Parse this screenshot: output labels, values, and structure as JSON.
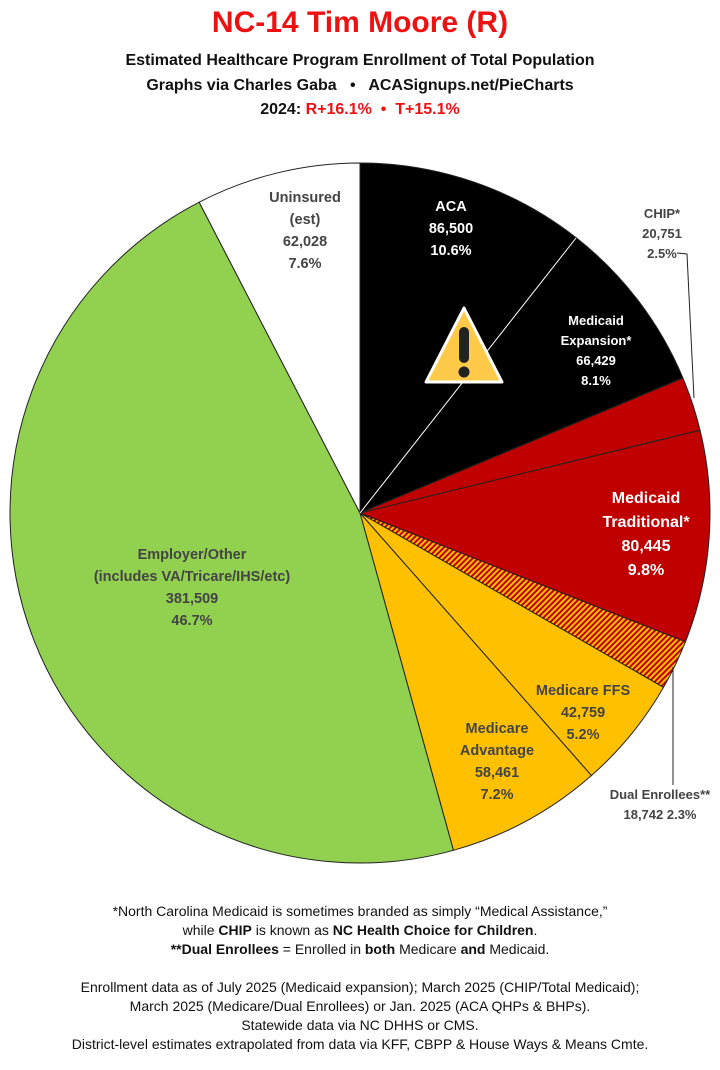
{
  "header": {
    "title": "NC-14 Tim Moore (R)",
    "subtitle": "Estimated Healthcare Program Enrollment of Total Population",
    "credit": "Graphs via Charles Gaba   •   ACASignups.net/PieCharts",
    "margin_prefix": "2024: ",
    "margin_values": "R+16.1%  •  T+15.1%"
  },
  "chart_data": {
    "type": "pie",
    "start": "top, clockwise",
    "slices": [
      {
        "label": "ACA",
        "value": 86500,
        "percent": 10.6,
        "value_text": "86,500",
        "percent_text": "10.6%",
        "color": "#000000"
      },
      {
        "label": "Medicaid Expansion*",
        "value": 66429,
        "percent": 8.1,
        "value_text": "66,429",
        "percent_text": "8.1%",
        "color": "#000000"
      },
      {
        "label": "CHIP*",
        "value": 20751,
        "percent": 2.5,
        "value_text": "20,751",
        "percent_text": "2.5%",
        "color": "#c00000"
      },
      {
        "label": "Medicaid Traditional*",
        "value": 80445,
        "percent": 9.8,
        "value_text": "80,445",
        "percent_text": "9.8%",
        "color": "#c00000"
      },
      {
        "label": "Dual Enrollees**",
        "value": 18742,
        "percent": 2.3,
        "value_text": "18,742",
        "percent_text": "2.3%",
        "color": "hatched #c00000/#ffc000"
      },
      {
        "label": "Medicare FFS",
        "value": 42759,
        "percent": 5.2,
        "value_text": "42,759",
        "percent_text": "5.2%",
        "color": "#ffc000"
      },
      {
        "label": "Medicare Advantage",
        "value": 58461,
        "percent": 7.2,
        "value_text": "58,461",
        "percent_text": "7.2%",
        "color": "#ffc000"
      },
      {
        "label": "Employer/Other (includes VA/Tricare/IHS/etc)",
        "value": 381509,
        "percent": 46.7,
        "value_text": "381,509",
        "percent_text": "46.7%",
        "color": "#92d050"
      },
      {
        "label": "Uninsured (est)",
        "value": 62028,
        "percent": 7.6,
        "value_text": "62,028",
        "percent_text": "7.6%",
        "color": "#ffffff"
      }
    ],
    "annotation_icon": "warning-triangle-icon"
  },
  "labels": {
    "aca": "ACA",
    "medexp_1": "Medicaid",
    "medexp_2": "Expansion*",
    "chip": "CHIP*",
    "medtrad_1": "Medicaid",
    "medtrad_2": "Traditional*",
    "dual": "Dual Enrollees**",
    "dual_vals": "18,742 2.3%",
    "ffs": "Medicare FFS",
    "ma_1": "Medicare",
    "ma_2": "Advantage",
    "emp_1": "Employer/Other",
    "emp_2": "(includes VA/Tricare/IHS/etc)",
    "unins_1": "Uninsured",
    "unins_2": "(est)"
  },
  "footnotes": {
    "n1": "*North Carolina Medicaid is sometimes branded as simply “Medical Assistance,”",
    "n2a": "while ",
    "n2b": "CHIP",
    "n2c": " is known as ",
    "n2d": "NC Health Choice for Children",
    "n2e": ".",
    "n3a": "**Dual Enrollees",
    "n3b": " = Enrolled in ",
    "n3c": "both",
    "n3d": " Medicare ",
    "n3e": "and",
    "n3f": " Medicaid.",
    "s1": "Enrollment data as of July 2025 (Medicaid expansion); March 2025 (CHIP/Total Medicaid);",
    "s2": "March 2025 (Medicare/Dual Enrollees) or Jan. 2025 (ACA QHPs & BHPs).",
    "s3": "Statewide data via NC DHHS or CMS.",
    "s4": "District-level estimates extrapolated from data via KFF, CBPP & House Ways & Means Cmte."
  }
}
